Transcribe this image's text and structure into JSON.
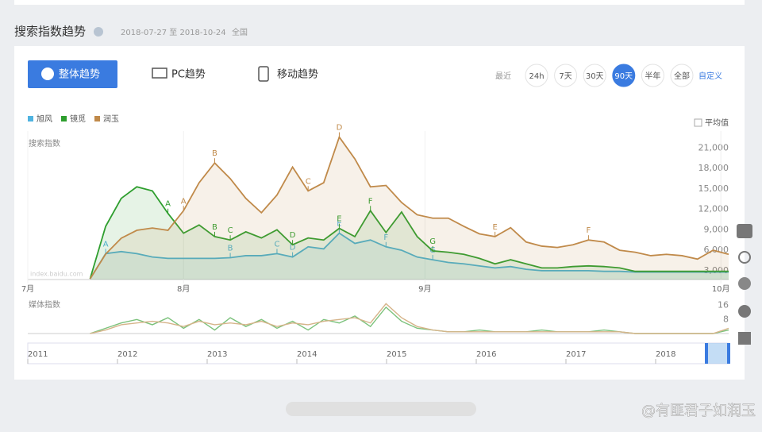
{
  "header": {
    "title": "搜索指数趋势",
    "date_range": "2018-07-27 至 2018-10-24",
    "region": "全国"
  },
  "tabs": [
    "整体趋势",
    "PC趋势",
    "移动趋势"
  ],
  "range_label": "最近",
  "range_buttons": [
    "24h",
    "7天",
    "30天",
    "90天",
    "半年",
    "全部"
  ],
  "active_range": 3,
  "custom": "自定义",
  "average_label": "平均值",
  "watermark": "index.baidu.com",
  "weibo": "@有匪君子如润玉",
  "timeline": {
    "years": [
      "2011",
      "2012",
      "2013",
      "2014",
      "2015",
      "2016",
      "2017",
      "2018"
    ]
  },
  "chart_data": [
    {
      "type": "line",
      "y_label": "搜索指数",
      "x": [
        8,
        10,
        12,
        14,
        16,
        18,
        20,
        22,
        24,
        26,
        28,
        30,
        32,
        34,
        36,
        38,
        40,
        42,
        44,
        46,
        48,
        50,
        52,
        54,
        56,
        58,
        60,
        62,
        64,
        66,
        68,
        70,
        72,
        74,
        76,
        78,
        80,
        82,
        84,
        86,
        88,
        90
      ],
      "xlim": [
        0,
        90
      ],
      "xticks": [
        {
          "value": 0,
          "label": "7月"
        },
        {
          "value": 20,
          "label": "8月"
        },
        {
          "value": 51,
          "label": "9月"
        },
        {
          "value": 89,
          "label": "10月"
        }
      ],
      "ylim": [
        1700,
        22900
      ],
      "yticks": [
        {
          "value": 3000,
          "label": "3,000"
        },
        {
          "value": 6000,
          "label": "6,000"
        },
        {
          "value": 9000,
          "label": "9,000"
        },
        {
          "value": 12000,
          "label": "12,000"
        },
        {
          "value": 15000,
          "label": "15,000"
        },
        {
          "value": 18000,
          "label": "18,000"
        },
        {
          "value": 21000,
          "label": "21,000"
        }
      ],
      "grid": false,
      "series": [
        {
          "name": "旭风",
          "color": "#4fb3e0",
          "values": [
            1800,
            5500,
            5800,
            5500,
            5000,
            4800,
            4800,
            4800,
            4800,
            4900,
            5200,
            5200,
            5500,
            5000,
            6500,
            6200,
            8500,
            7000,
            7500,
            6500,
            6000,
            5000,
            4600,
            4200,
            4000,
            3700,
            3400,
            3600,
            3200,
            3000,
            3000,
            3000,
            3000,
            2900,
            2900,
            2800,
            2800,
            2800,
            2800,
            2800,
            2800,
            2800
          ],
          "markers": [
            {
              "label": "A",
              "x": 10
            },
            {
              "label": "B",
              "x": 26
            },
            {
              "label": "C",
              "x": 32
            },
            {
              "label": "D",
              "x": 34
            },
            {
              "label": "E",
              "x": 40
            },
            {
              "label": "F",
              "x": 46
            },
            {
              "label": "G",
              "x": 52
            }
          ]
        },
        {
          "name": "镜觅",
          "color": "#2e9e2e",
          "values": [
            1800,
            9500,
            13600,
            15300,
            14700,
            11400,
            8500,
            9700,
            8000,
            7500,
            8700,
            7800,
            9000,
            6800,
            7800,
            7500,
            9200,
            8000,
            11800,
            8600,
            11600,
            8000,
            5900,
            5700,
            5400,
            4800,
            4000,
            4600,
            4000,
            3400,
            3400,
            3600,
            3700,
            3600,
            3400,
            2900,
            2900,
            2900,
            2900,
            2900,
            2900,
            2900
          ],
          "markers": [
            {
              "label": "A",
              "x": 18
            },
            {
              "label": "B",
              "x": 24
            },
            {
              "label": "C",
              "x": 26
            },
            {
              "label": "D",
              "x": 34
            },
            {
              "label": "E",
              "x": 40
            },
            {
              "label": "F",
              "x": 44
            },
            {
              "label": "G",
              "x": 52
            }
          ]
        },
        {
          "name": "润玉",
          "color": "#c08a4a",
          "values": [
            1800,
            5440,
            7760,
            8920,
            9260,
            8920,
            11800,
            15900,
            18800,
            16500,
            13600,
            11500,
            14100,
            18200,
            14700,
            15900,
            22600,
            19400,
            15300,
            15500,
            13000,
            11200,
            10700,
            10700,
            9500,
            8400,
            8000,
            9300,
            7200,
            6600,
            6400,
            6800,
            7500,
            7200,
            6000,
            5700,
            5200,
            5400,
            5200,
            4700,
            6000,
            5400
          ],
          "markers": [
            {
              "label": "A",
              "x": 20
            },
            {
              "label": "B",
              "x": 24
            },
            {
              "label": "C",
              "x": 36
            },
            {
              "label": "D",
              "x": 40
            },
            {
              "label": "E",
              "x": 60
            },
            {
              "label": "F",
              "x": 72
            }
          ]
        }
      ]
    },
    {
      "type": "line",
      "y_label": "媒体指数",
      "x": [
        8,
        10,
        12,
        14,
        16,
        18,
        20,
        22,
        24,
        26,
        28,
        30,
        32,
        34,
        36,
        38,
        40,
        42,
        44,
        46,
        48,
        50,
        52,
        54,
        56,
        58,
        60,
        62,
        64,
        66,
        68,
        70,
        72,
        74,
        76,
        78,
        80,
        82,
        84,
        86,
        88,
        90
      ],
      "xlim": [
        0,
        90
      ],
      "ylim": [
        0,
        19
      ],
      "yticks": [
        8,
        16
      ],
      "grid": false,
      "series": [
        {
          "color": "#7cc27c",
          "values": [
            0,
            3,
            6,
            8,
            5,
            9,
            3,
            8,
            2,
            9,
            4,
            8,
            3,
            7,
            2,
            8,
            6,
            10,
            4,
            15,
            7,
            3,
            2,
            1,
            1,
            2,
            1,
            1,
            1,
            2,
            1,
            1,
            1,
            2,
            1,
            0,
            0,
            0,
            0,
            0,
            0,
            2
          ]
        },
        {
          "color": "#d6b48a",
          "values": [
            0,
            2,
            5,
            6,
            7,
            6,
            4,
            7,
            5,
            6,
            5,
            7,
            4,
            6,
            5,
            7,
            8,
            9,
            6,
            17,
            9,
            4,
            2,
            1,
            1,
            1,
            1,
            1,
            1,
            1,
            1,
            1,
            1,
            1,
            1,
            0,
            0,
            0,
            0,
            0,
            0,
            3
          ]
        }
      ]
    }
  ]
}
